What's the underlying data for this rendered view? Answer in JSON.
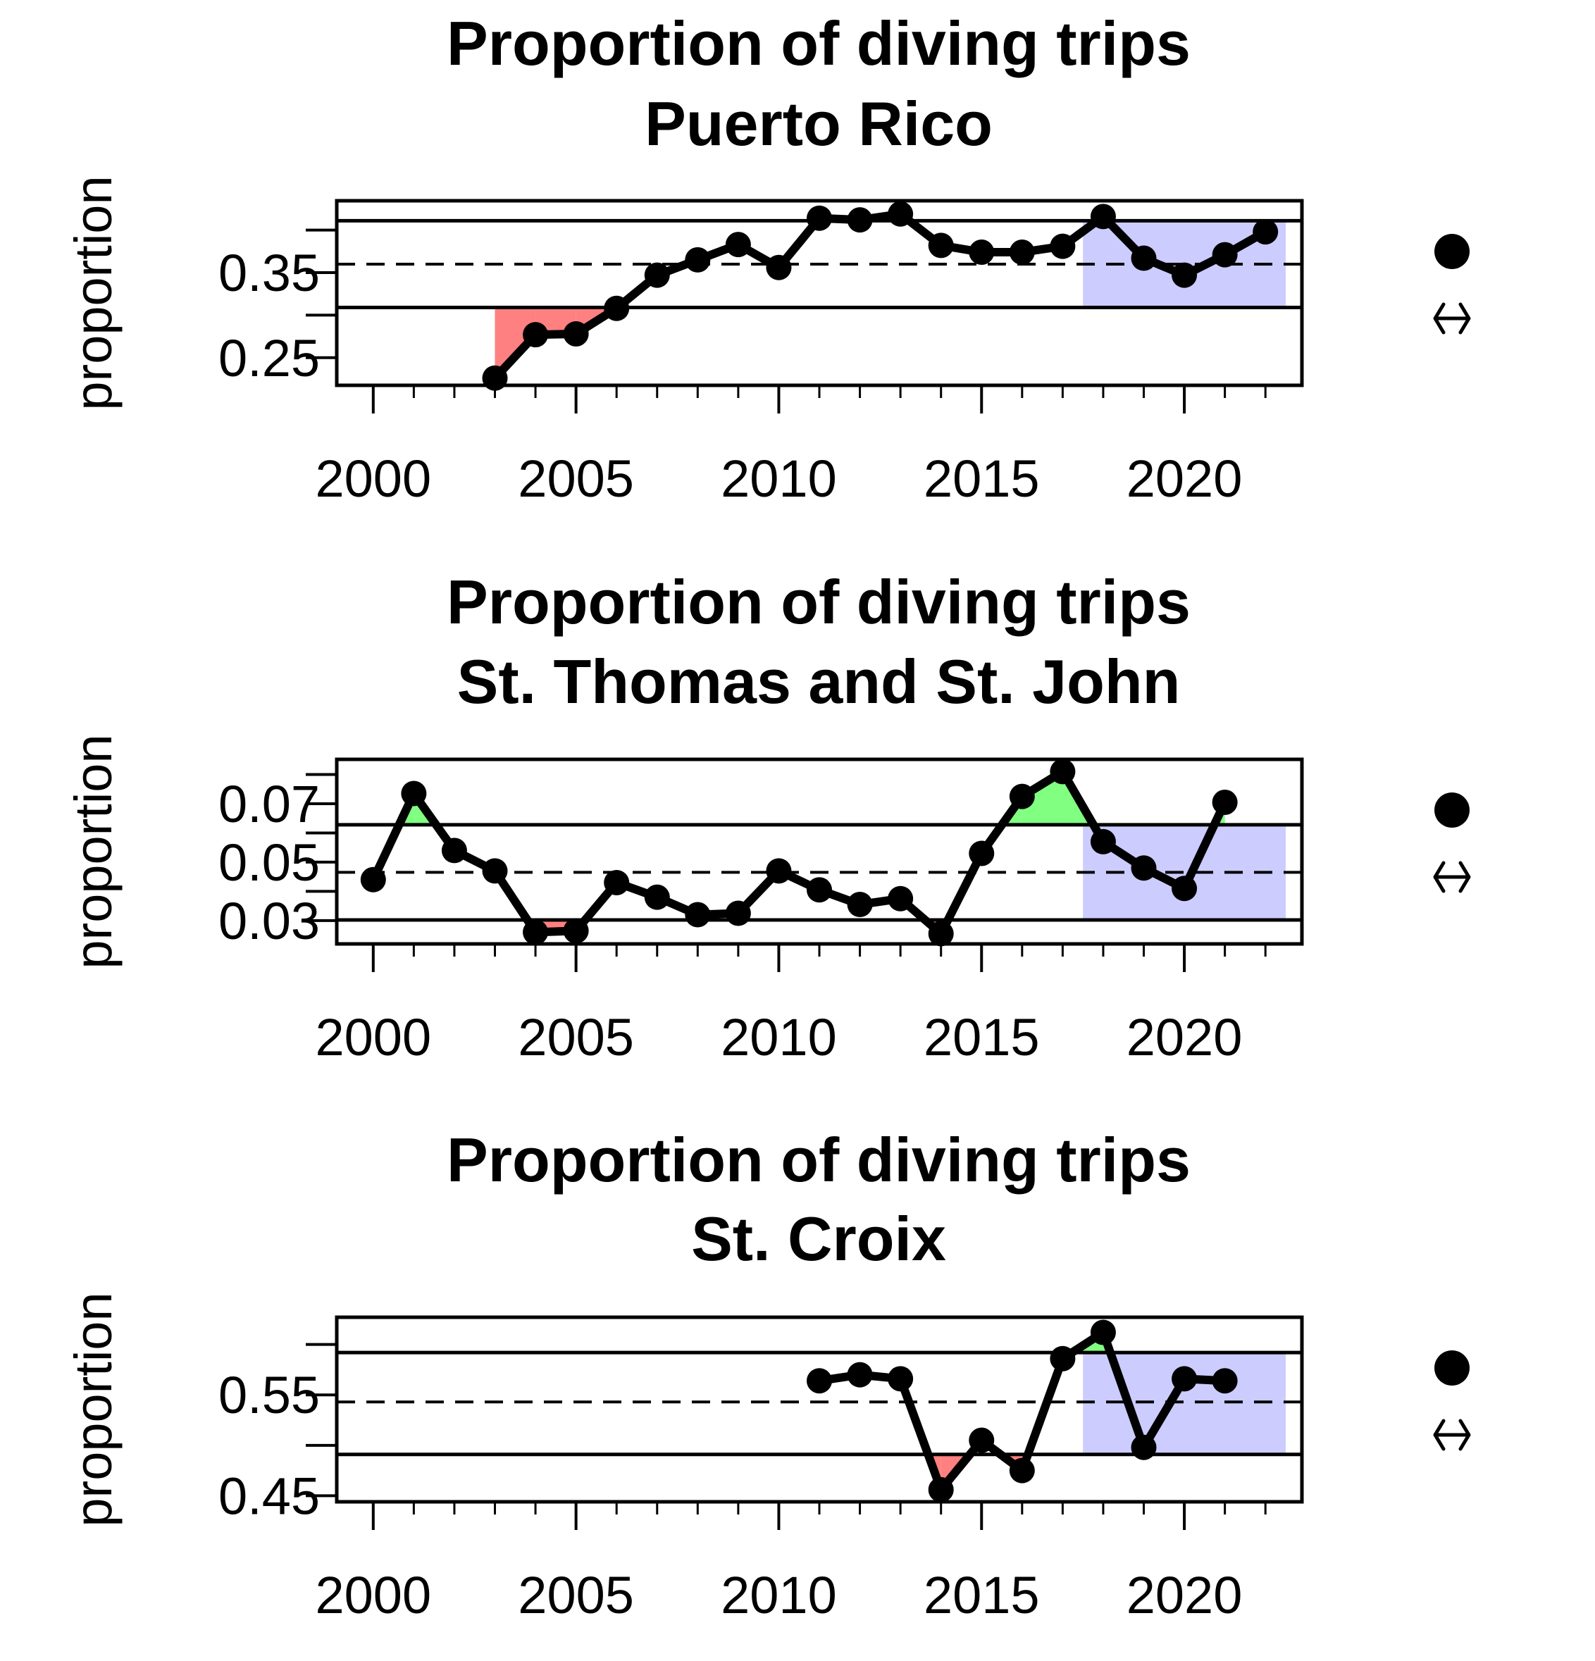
{
  "figure": {
    "x_ticks": [
      "2000",
      "2005",
      "2010",
      "2015",
      "2020"
    ]
  },
  "chart_data": [
    {
      "type": "line",
      "title": "Proportion of diving trips",
      "subtitle": "Puerto Rico",
      "xlabel": "",
      "ylabel": "proportion",
      "xlim": [
        1999.1,
        2022.9
      ],
      "ylim": [
        0.2175,
        0.4345
      ],
      "y_ticks": [
        0.25,
        0.3,
        0.35,
        0.4
      ],
      "y_tick_labels": [
        "0.25",
        "",
        "0.35",
        ""
      ],
      "x": [
        2003,
        2004,
        2005,
        2006,
        2007,
        2008,
        2009,
        2010,
        2011,
        2012,
        2013,
        2014,
        2015,
        2016,
        2017,
        2018,
        2019,
        2020,
        2021,
        2022
      ],
      "values": [
        0.226,
        0.277,
        0.278,
        0.308,
        0.347,
        0.365,
        0.383,
        0.356,
        0.414,
        0.412,
        0.419,
        0.382,
        0.374,
        0.374,
        0.381,
        0.416,
        0.367,
        0.347,
        0.371,
        0.398
      ],
      "mean": 0.36,
      "upper_sd": 0.411,
      "lower_sd": 0.309,
      "recent_window": [
        2017.5,
        2022.5
      ],
      "colors": {
        "line": "#000000",
        "above": "#80ff80",
        "below": "#ff8080",
        "recent": "#ccccff"
      },
      "trend_glyphs": {
        "mean_status": "●",
        "trend_status": "↔"
      }
    },
    {
      "type": "line",
      "title": "Proportion of diving trips",
      "subtitle": "St. Thomas and St. John",
      "xlabel": "",
      "ylabel": "proportion",
      "xlim": [
        1999.1,
        2022.9
      ],
      "ylim": [
        0.022,
        0.0852
      ],
      "y_ticks": [
        0.03,
        0.04,
        0.05,
        0.06,
        0.07,
        0.08
      ],
      "y_tick_labels": [
        "0.03",
        "",
        "0.05",
        "",
        "0.07",
        ""
      ],
      "x": [
        2000,
        2001,
        2002,
        2003,
        2004,
        2005,
        2006,
        2007,
        2008,
        2009,
        2010,
        2011,
        2012,
        2013,
        2014,
        2015,
        2016,
        2017,
        2018,
        2019,
        2020,
        2021
      ],
      "values": [
        0.044,
        0.0735,
        0.054,
        0.047,
        0.026,
        0.0265,
        0.043,
        0.038,
        0.032,
        0.0325,
        0.047,
        0.0405,
        0.0355,
        0.0375,
        0.0255,
        0.053,
        0.0725,
        0.081,
        0.057,
        0.048,
        0.041,
        0.0705
      ],
      "mean": 0.0465,
      "upper_sd": 0.0628,
      "lower_sd": 0.0302,
      "recent_window": [
        2017.5,
        2022.5
      ],
      "colors": {
        "line": "#000000",
        "above": "#80ff80",
        "below": "#ff8080",
        "recent": "#ccccff"
      },
      "trend_glyphs": {
        "mean_status": "●",
        "trend_status": "↔"
      }
    },
    {
      "type": "line",
      "title": "Proportion of diving trips",
      "subtitle": "St. Croix",
      "xlabel": "",
      "ylabel": "proportion",
      "xlim": [
        1999.1,
        2022.9
      ],
      "ylim": [
        0.444,
        0.627
      ],
      "y_ticks": [
        0.45,
        0.5,
        0.55,
        0.6
      ],
      "y_tick_labels": [
        "0.45",
        "",
        "0.55",
        ""
      ],
      "x": [
        2011,
        2012,
        2013,
        2014,
        2015,
        2016,
        2017,
        2018,
        2019,
        2020,
        2021
      ],
      "values": [
        0.564,
        0.57,
        0.566,
        0.456,
        0.505,
        0.475,
        0.586,
        0.612,
        0.498,
        0.566,
        0.564
      ],
      "mean": 0.543,
      "upper_sd": 0.592,
      "lower_sd": 0.491,
      "recent_window": [
        2017.5,
        2022.5
      ],
      "colors": {
        "line": "#000000",
        "above": "#80ff80",
        "below": "#ff8080",
        "recent": "#ccccff"
      },
      "trend_glyphs": {
        "mean_status": "●",
        "trend_status": "↔"
      }
    }
  ]
}
